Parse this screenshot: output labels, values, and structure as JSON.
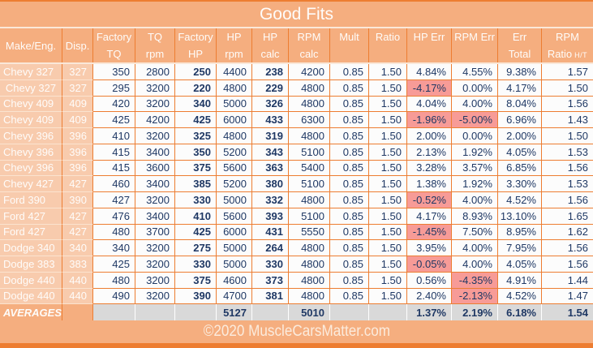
{
  "title": "Good Fits",
  "footer": {
    "copyright": "©2020 MuscleCarsMatter.com"
  },
  "colors": {
    "accent_orange": "#ED7D31",
    "header_bg": "#F5AE7F",
    "row_label_bg": "#F8CBAD",
    "cell_bg": "#FCFCFC",
    "negative_highlight_bg": "#F79B97",
    "averages_bg": "#D9D9D9",
    "value_text": "#1F3864",
    "header_text": "#FFFFFF"
  },
  "chart_data": {
    "type": "table",
    "title": "Good Fits",
    "layout_hints": {
      "grid": "orange gridlines",
      "negative_values": "pink highlight",
      "averages_row": "gray cells, bold"
    },
    "columns": [
      {
        "key": "make",
        "line1": "Make/Eng.",
        "line2": ""
      },
      {
        "key": "disp",
        "line1": "Disp.",
        "line2": ""
      },
      {
        "key": "factory_tq",
        "line1": "Factory",
        "line2": "TQ"
      },
      {
        "key": "tq_rpm",
        "line1": "TQ",
        "line2": "rpm"
      },
      {
        "key": "factory_hp",
        "line1": "Factory",
        "line2": "HP"
      },
      {
        "key": "hp_rpm",
        "line1": "HP",
        "line2": "rpm"
      },
      {
        "key": "hp_calc",
        "line1": "HP",
        "line2": "calc"
      },
      {
        "key": "rpm_calc",
        "line1": "RPM",
        "line2": "calc"
      },
      {
        "key": "mult",
        "line1": "Mult",
        "line2": ""
      },
      {
        "key": "ratio",
        "line1": "Ratio",
        "line2": ""
      },
      {
        "key": "hp_err",
        "line1": "HP Err",
        "line2": ""
      },
      {
        "key": "rpm_err",
        "line1": "RPM Err",
        "line2": ""
      },
      {
        "key": "err_total",
        "line1": "Err",
        "line2": "Total"
      },
      {
        "key": "rpm_ratio",
        "line1": "RPM",
        "line2": "Ratio",
        "line2_sub": "H/T"
      }
    ],
    "rows": [
      {
        "make": "Chevy 327",
        "disp": "327",
        "cells": [
          "350",
          "2800",
          "250",
          "4400",
          "238",
          "4200",
          "0.85",
          "1.50",
          "4.84%",
          "4.55%",
          "9.38%",
          "1.57"
        ]
      },
      {
        "make": "Chevy 327",
        "disp": "327",
        "align": "center",
        "cells": [
          "295",
          "3200",
          "220",
          "4800",
          "229",
          "4800",
          "0.85",
          "1.50",
          "-4.17%",
          "0.00%",
          "4.17%",
          "1.50"
        ]
      },
      {
        "make": "Chevy 409",
        "disp": "409",
        "cells": [
          "420",
          "3200",
          "340",
          "5000",
          "326",
          "4800",
          "0.85",
          "1.50",
          "4.04%",
          "4.00%",
          "8.04%",
          "1.56"
        ]
      },
      {
        "make": "Chevy 409",
        "disp": "409",
        "cells": [
          "425",
          "4200",
          "425",
          "6000",
          "433",
          "6300",
          "0.85",
          "1.50",
          "-1.96%",
          "-5.00%",
          "6.96%",
          "1.43"
        ]
      },
      {
        "make": "Chevy 396",
        "disp": "396",
        "cells": [
          "410",
          "3200",
          "325",
          "4800",
          "319",
          "4800",
          "0.85",
          "1.50",
          "2.00%",
          "0.00%",
          "2.00%",
          "1.50"
        ]
      },
      {
        "make": "Chevy 396",
        "disp": "396",
        "cells": [
          "415",
          "3400",
          "350",
          "5200",
          "343",
          "5100",
          "0.85",
          "1.50",
          "2.13%",
          "1.92%",
          "4.05%",
          "1.53"
        ]
      },
      {
        "make": "Chevy 396",
        "disp": "396",
        "cells": [
          "415",
          "3600",
          "375",
          "5600",
          "363",
          "5400",
          "0.85",
          "1.50",
          "3.28%",
          "3.57%",
          "6.85%",
          "1.56"
        ]
      },
      {
        "make": "Chevy 427",
        "disp": "427",
        "cells": [
          "460",
          "3400",
          "385",
          "5200",
          "380",
          "5100",
          "0.85",
          "1.50",
          "1.38%",
          "1.92%",
          "3.30%",
          "1.53"
        ]
      },
      {
        "make": "Ford 390",
        "disp": "390",
        "cells": [
          "427",
          "3200",
          "330",
          "5000",
          "332",
          "4800",
          "0.85",
          "1.50",
          "-0.52%",
          "4.00%",
          "4.52%",
          "1.56"
        ]
      },
      {
        "make": "Ford 427",
        "disp": "427",
        "cells": [
          "476",
          "3400",
          "410",
          "5600",
          "393",
          "5100",
          "0.85",
          "1.50",
          "4.17%",
          "8.93%",
          "13.10%",
          "1.65"
        ]
      },
      {
        "make": "Ford 427",
        "disp": "427",
        "cells": [
          "480",
          "3700",
          "425",
          "6000",
          "431",
          "5550",
          "0.85",
          "1.50",
          "-1.45%",
          "7.50%",
          "8.95%",
          "1.62"
        ]
      },
      {
        "make": "Dodge 340",
        "disp": "340",
        "cells": [
          "340",
          "3200",
          "275",
          "5000",
          "264",
          "4800",
          "0.85",
          "1.50",
          "3.95%",
          "4.00%",
          "7.95%",
          "1.56"
        ]
      },
      {
        "make": "Dodge 383",
        "disp": "383",
        "cells": [
          "425",
          "3200",
          "330",
          "5000",
          "330",
          "4800",
          "0.85",
          "1.50",
          "-0.05%",
          "4.00%",
          "4.05%",
          "1.56"
        ]
      },
      {
        "make": "Dodge 440",
        "disp": "440",
        "cells": [
          "480",
          "3200",
          "375",
          "4600",
          "373",
          "4800",
          "0.85",
          "1.50",
          "0.56%",
          "-4.35%",
          "4.91%",
          "1.44"
        ]
      },
      {
        "make": "Dodge 440",
        "disp": "440",
        "cells": [
          "490",
          "3200",
          "390",
          "4700",
          "381",
          "4800",
          "0.85",
          "1.50",
          "2.40%",
          "-2.13%",
          "4.52%",
          "1.47"
        ]
      }
    ],
    "averages": {
      "label": "AVERAGES",
      "cells": [
        "",
        "",
        "",
        "5127",
        "",
        "5010",
        "",
        "",
        "1.37%",
        "2.19%",
        "6.18%",
        "1.54"
      ]
    }
  }
}
